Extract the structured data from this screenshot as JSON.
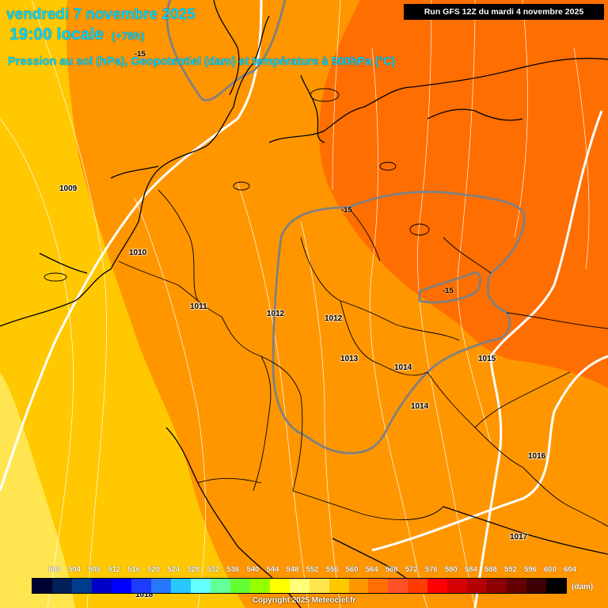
{
  "header": {
    "date_line": "vendredi 7 novembre 2025",
    "time_line": "19:00 locale",
    "lead_time": "(+78h)",
    "subtitle": "Pression au sol (hPa), Geopotentiel (dam) et température à 500hPa (°C)",
    "run_info": "Run GFS 12Z du mardi 4 novembre 2025"
  },
  "pressure_labels": [
    {
      "id": "p1009",
      "text": "1009"
    },
    {
      "id": "p1010",
      "text": "1010"
    },
    {
      "id": "p1011",
      "text": "1011"
    },
    {
      "id": "p1012a",
      "text": "1012"
    },
    {
      "id": "p1012b",
      "text": "1012"
    },
    {
      "id": "p1013",
      "text": "1013"
    },
    {
      "id": "p1014a",
      "text": "1014"
    },
    {
      "id": "p1014b",
      "text": "1014"
    },
    {
      "id": "p1015",
      "text": "1015"
    },
    {
      "id": "p1016",
      "text": "1016"
    },
    {
      "id": "p1017",
      "text": "1017"
    },
    {
      "id": "p1018",
      "text": "1018"
    }
  ],
  "temperature_labels": [
    {
      "id": "t15a",
      "text": "-15"
    },
    {
      "id": "t15b",
      "text": "-15"
    },
    {
      "id": "t15c",
      "text": "-15"
    }
  ],
  "legend": {
    "ticks": [
      "500",
      "504",
      "508",
      "512",
      "516",
      "520",
      "524",
      "528",
      "532",
      "536",
      "540",
      "544",
      "548",
      "552",
      "556",
      "560",
      "564",
      "568",
      "572",
      "576",
      "580",
      "584",
      "588",
      "592",
      "596",
      "600",
      "604"
    ],
    "colors": [
      "#000033",
      "#00205a",
      "#003c8c",
      "#0000c8",
      "#0000ff",
      "#1e3cff",
      "#2878ff",
      "#28c8ff",
      "#64ffff",
      "#64ff96",
      "#64ff32",
      "#96ff00",
      "#ffff00",
      "#ffff78",
      "#ffe650",
      "#ffc800",
      "#ff9600",
      "#ff6e00",
      "#ff5028",
      "#ff3c00",
      "#ff0000",
      "#d70000",
      "#b40000",
      "#8c0000",
      "#640000",
      "#3c0000",
      "#000000"
    ],
    "unit": "(dam)"
  },
  "field_colors": {
    "g556": "#ffe650",
    "g560": "#ffc800",
    "g564": "#ff9600",
    "g568": "#ff6e00"
  },
  "copyright": "Copyright 2025 Meteociel.fr"
}
